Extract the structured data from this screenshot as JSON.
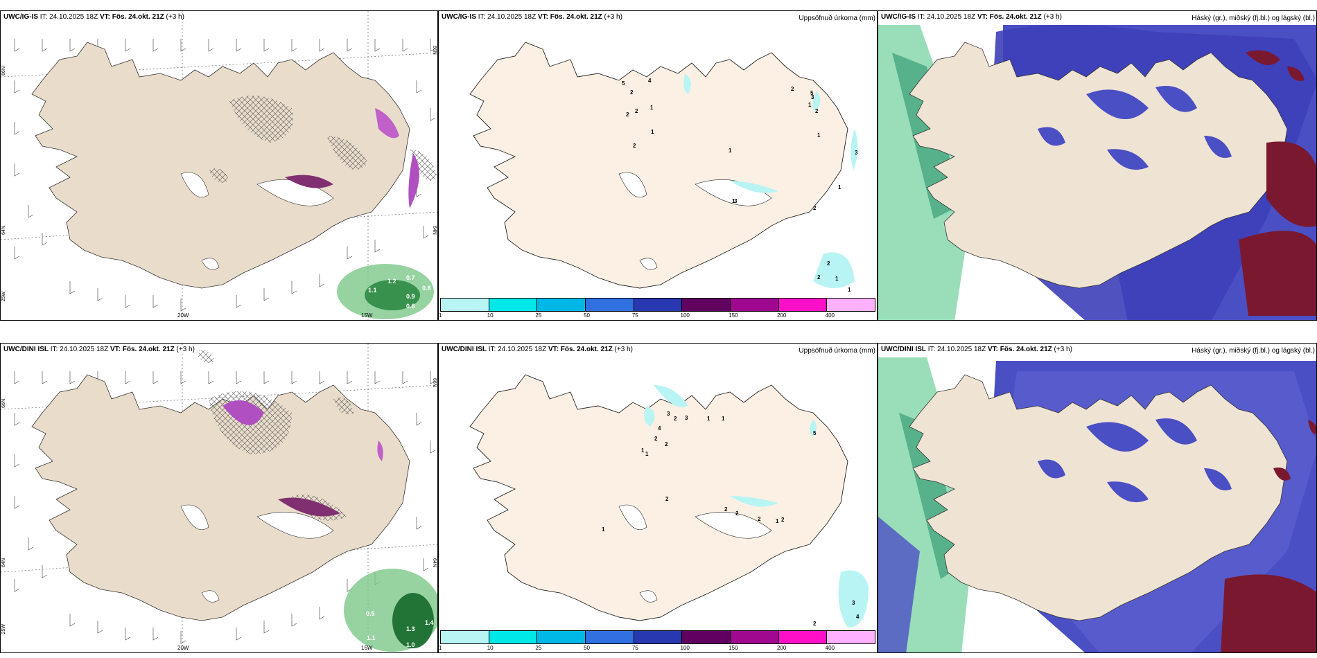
{
  "panels": {
    "p1": {
      "title_prefix": "UWC/IG-IS",
      "title_rest": " IT: 24.10.2025 18Z ",
      "title_vt": "VT: Fös. 24.okt. 21Z",
      "title_suffix": " (+3 h)",
      "right_title": ""
    },
    "p2": {
      "title_prefix": "UWC/IG-IS",
      "title_rest": " IT: 24.10.2025 18Z ",
      "title_vt": "VT: Fös. 24.okt. 21Z",
      "title_suffix": " (+3 h)",
      "right_title": "Uppsöfnuð úrkoma (mm)"
    },
    "p3": {
      "title_prefix": "UWC/IG-IS",
      "title_rest": " IT: 24.10.2025 18Z ",
      "title_vt": "VT: Fös. 24.okt. 21Z",
      "title_suffix": " (+3 h)",
      "right_title": "Háský (gr.), miðský (fj.bl.) og lágský (bl.)"
    },
    "p4": {
      "title_prefix": "UWC/DINI ISL",
      "title_rest": " IT: 24.10.2025 18Z ",
      "title_vt": "VT: Fös. 24.okt. 21Z",
      "title_suffix": " (+3 h)",
      "right_title": ""
    },
    "p5": {
      "title_prefix": "UWC/DINI ISL",
      "title_rest": " IT: 24.10.2025 18Z ",
      "title_vt": "VT: Fös. 24.okt. 21Z",
      "title_suffix": " (+3 h)",
      "right_title": "Uppsöfnuð úrkoma (mm)"
    },
    "p6": {
      "title_prefix": "UWC/DINI ISL",
      "title_rest": " IT: 24.10.2025 18Z ",
      "title_vt": "VT: Fös. 24.okt. 21Z",
      "title_suffix": " (+3 h)",
      "right_title": "Háský (gr.), miðský (fj.bl.) og lágský (bl.)"
    }
  },
  "axis": {
    "lon_20w": "20W",
    "lon_15w": "15W",
    "lon_25w": "25W",
    "lat_66n": "66N",
    "lat_64n": "64N"
  },
  "colorbar": {
    "ticks": [
      "1",
      "10",
      "25",
      "50",
      "75",
      "100",
      "150",
      "200",
      "400"
    ],
    "colors": [
      "#b8f4f4",
      "#00e8e8",
      "#00b8e8",
      "#3070e0",
      "#2838b0",
      "#600060",
      "#a00890",
      "#ff10c8",
      "#ffb0ff"
    ]
  },
  "precip_values": {
    "top": [
      "5",
      "2",
      "4",
      "1",
      "2",
      "2",
      "1",
      "2",
      "1",
      "1",
      "3",
      "2",
      "5",
      "2",
      "1",
      "3",
      "1",
      "3",
      "1",
      "2",
      "2",
      "2",
      "1",
      "1"
    ],
    "bottom": [
      "3",
      "2",
      "3",
      "1",
      "1",
      "4",
      "2",
      "2",
      "1",
      "1",
      "5",
      "2",
      "1",
      "2",
      "2",
      "2",
      "1",
      "2",
      "3",
      "4",
      "2"
    ]
  },
  "wind_values": {
    "top": [
      "0.7",
      "0.8",
      "1.2",
      "1.1",
      "0.9",
      "0.6"
    ],
    "bottom": [
      "0.5",
      "1.1",
      "1.3",
      "1.4",
      "1.0"
    ]
  },
  "colors": {
    "land": "#efe3d4",
    "land_precip": "#fcf0e4",
    "cloud_high": "#4b4fc4",
    "cloud_mid": "#7080e0",
    "cloud_low": "#a0e8f4",
    "cloud_red": "#7a1830",
    "green": "#3aa060"
  }
}
